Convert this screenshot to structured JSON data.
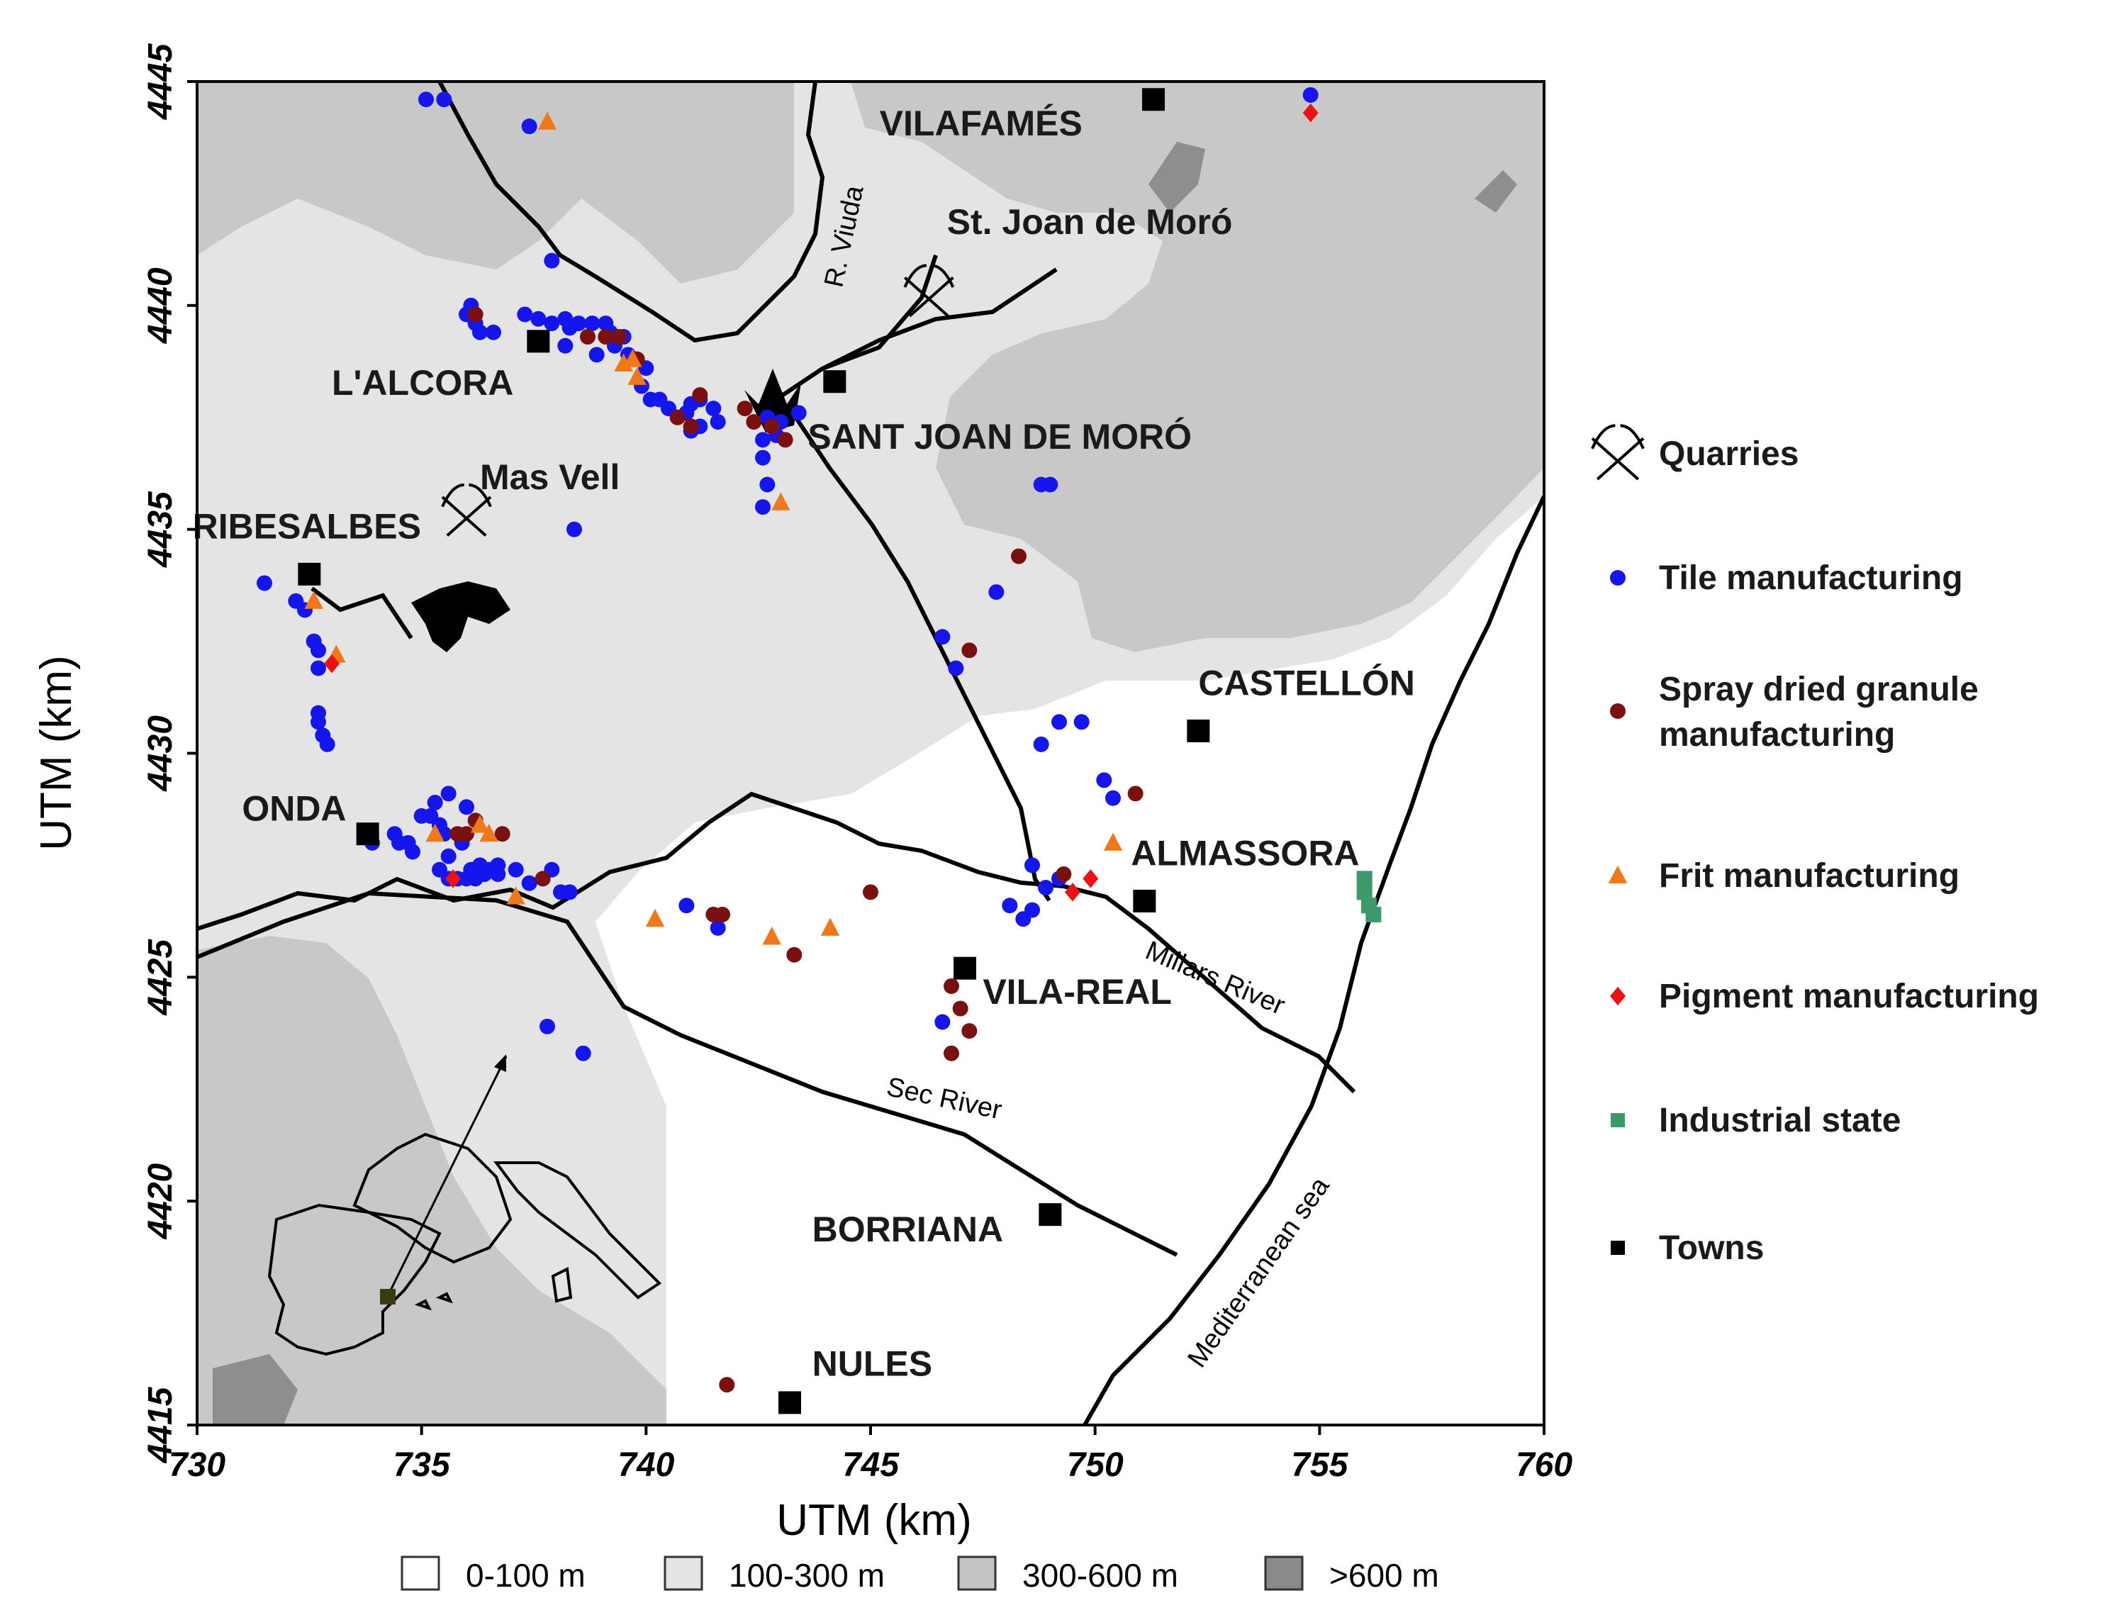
{
  "chart_data": {
    "type": "scatter",
    "xlabel": "UTM (km)",
    "ylabel": "UTM (km)",
    "xlim": [
      730,
      760
    ],
    "ylim": [
      4415,
      4445
    ],
    "x_ticks": [
      "730",
      "735",
      "740",
      "745",
      "750",
      "755",
      "760"
    ],
    "y_ticks": [
      "4415",
      "4420",
      "4425",
      "4430",
      "4435",
      "4440",
      "4445"
    ],
    "places": [
      {
        "name": "VILAFAMÉS",
        "x": 751.3,
        "y": 4444.6,
        "lx": 745.2,
        "ly": 4443.8
      },
      {
        "name": "L'ALCORA",
        "x": 737.6,
        "y": 4439.2,
        "lx": 733.0,
        "ly": 4438.0
      },
      {
        "name": "SANT JOAN DE MORÓ",
        "x": 744.2,
        "y": 4438.3,
        "lx": 743.6,
        "ly": 4436.8
      },
      {
        "name": "RIBESALBES",
        "x": 732.5,
        "y": 4434.0,
        "lx": 729.9,
        "ly": 4434.8
      },
      {
        "name": "CASTELLÓN",
        "x": 752.3,
        "y": 4430.5,
        "lx": 752.3,
        "ly": 4431.3
      },
      {
        "name": "ONDA",
        "x": 733.8,
        "y": 4428.2,
        "lx": 731.0,
        "ly": 4428.5
      },
      {
        "name": "ALMASSORA",
        "x": 751.1,
        "y": 4426.7,
        "lx": 750.8,
        "ly": 4427.5
      },
      {
        "name": "VILA-REAL",
        "x": 747.1,
        "y": 4425.2,
        "lx": 747.5,
        "ly": 4424.4
      },
      {
        "name": "BORRIANA",
        "x": 749.0,
        "y": 4419.7,
        "lx": 743.7,
        "ly": 4419.1
      },
      {
        "name": "NULES",
        "x": 743.2,
        "y": 4415.5,
        "lx": 743.7,
        "ly": 4416.1
      }
    ],
    "other_labels": [
      {
        "text": "St. Joan de Moró",
        "lx": 746.7,
        "ly": 4441.6
      },
      {
        "text": "Mas Vell",
        "lx": 736.3,
        "ly": 4435.9
      }
    ],
    "rivers": [
      {
        "name": "R. Viuda",
        "lx": 744.6,
        "ly": 4441.5,
        "angle": -78
      },
      {
        "name": "Millars River",
        "lx": 752.6,
        "ly": 4424.8,
        "angle": 23
      },
      {
        "name": "Sec River",
        "lx": 746.6,
        "ly": 4422.1,
        "angle": 12
      },
      {
        "name": "Mediterranean sea",
        "lx": 753.8,
        "ly": 4418.3,
        "angle": -55
      }
    ],
    "quarries": [
      {
        "x": 746.3,
        "y": 4440.3
      },
      {
        "x": 736.0,
        "y": 4435.4
      }
    ],
    "series": [
      {
        "name": "Tile manufacturing",
        "marker": "circle",
        "color": "#1515ee",
        "points": [
          [
            735.1,
            4444.6
          ],
          [
            735.5,
            4444.6
          ],
          [
            737.4,
            4444.0
          ],
          [
            754.8,
            4444.7
          ],
          [
            737.9,
            4441.0
          ],
          [
            736.0,
            4439.8
          ],
          [
            736.2,
            4439.6
          ],
          [
            736.3,
            4439.4
          ],
          [
            736.6,
            4439.4
          ],
          [
            736.1,
            4440.0
          ],
          [
            737.3,
            4439.8
          ],
          [
            737.6,
            4439.7
          ],
          [
            737.9,
            4439.6
          ],
          [
            738.2,
            4439.7
          ],
          [
            738.3,
            4439.5
          ],
          [
            738.5,
            4439.6
          ],
          [
            738.8,
            4439.6
          ],
          [
            739.1,
            4439.6
          ],
          [
            739.2,
            4439.4
          ],
          [
            739.3,
            4439.1
          ],
          [
            739.5,
            4439.3
          ],
          [
            738.2,
            4439.1
          ],
          [
            738.9,
            4438.9
          ],
          [
            739.6,
            4438.9
          ],
          [
            740.0,
            4438.6
          ],
          [
            739.9,
            4438.2
          ],
          [
            740.1,
            4437.9
          ],
          [
            740.3,
            4437.9
          ],
          [
            740.5,
            4437.7
          ],
          [
            740.7,
            4437.5
          ],
          [
            740.9,
            4437.6
          ],
          [
            741.0,
            4437.8
          ],
          [
            741.2,
            4437.9
          ],
          [
            741.5,
            4437.7
          ],
          [
            741.6,
            4437.4
          ],
          [
            741.2,
            4437.3
          ],
          [
            741.0,
            4437.2
          ],
          [
            742.6,
            4437.0
          ],
          [
            742.9,
            4437.1
          ],
          [
            743.0,
            4437.4
          ],
          [
            743.4,
            4437.6
          ],
          [
            742.7,
            4437.5
          ],
          [
            742.6,
            4436.6
          ],
          [
            742.7,
            4436.0
          ],
          [
            742.6,
            4435.5
          ],
          [
            742.8,
            4437.3
          ],
          [
            738.4,
            4435.0
          ],
          [
            748.8,
            4436.0
          ],
          [
            749.0,
            4436.0
          ],
          [
            731.5,
            4433.8
          ],
          [
            732.2,
            4433.4
          ],
          [
            732.4,
            4433.2
          ],
          [
            732.6,
            4432.5
          ],
          [
            732.7,
            4432.3
          ],
          [
            732.7,
            4431.9
          ],
          [
            732.7,
            4430.9
          ],
          [
            732.7,
            4430.7
          ],
          [
            732.8,
            4430.4
          ],
          [
            732.9,
            4430.2
          ],
          [
            747.8,
            4433.6
          ],
          [
            746.6,
            4432.6
          ],
          [
            746.9,
            4431.9
          ],
          [
            748.8,
            4430.2
          ],
          [
            749.2,
            4430.7
          ],
          [
            749.7,
            4430.7
          ],
          [
            750.2,
            4429.4
          ],
          [
            750.4,
            4429.0
          ],
          [
            733.9,
            4428.0
          ],
          [
            734.4,
            4428.2
          ],
          [
            734.5,
            4428.0
          ],
          [
            734.7,
            4428.0
          ],
          [
            734.8,
            4427.8
          ],
          [
            735.0,
            4428.6
          ],
          [
            735.3,
            4428.9
          ],
          [
            735.2,
            4428.6
          ],
          [
            735.4,
            4428.4
          ],
          [
            735.6,
            4429.1
          ],
          [
            735.5,
            4428.2
          ],
          [
            735.6,
            4427.7
          ],
          [
            735.9,
            4428.0
          ],
          [
            736.0,
            4428.8
          ],
          [
            735.4,
            4427.4
          ],
          [
            735.6,
            4427.2
          ],
          [
            735.8,
            4427.2
          ],
          [
            736.0,
            4427.2
          ],
          [
            736.1,
            4427.4
          ],
          [
            736.2,
            4427.2
          ],
          [
            736.4,
            4427.3
          ],
          [
            736.5,
            4427.4
          ],
          [
            736.7,
            4427.3
          ],
          [
            736.7,
            4427.5
          ],
          [
            736.3,
            4427.5
          ],
          [
            737.1,
            4427.4
          ],
          [
            737.4,
            4427.1
          ],
          [
            737.9,
            4427.4
          ],
          [
            738.1,
            4426.9
          ],
          [
            738.3,
            4426.9
          ],
          [
            740.9,
            4426.6
          ],
          [
            741.6,
            4426.1
          ],
          [
            748.1,
            4426.6
          ],
          [
            748.4,
            4426.3
          ],
          [
            748.6,
            4426.5
          ],
          [
            748.6,
            4427.5
          ],
          [
            748.9,
            4427.0
          ],
          [
            749.2,
            4427.2
          ],
          [
            746.6,
            4424.0
          ],
          [
            737.8,
            4423.9
          ],
          [
            738.6,
            4423.3
          ]
        ]
      },
      {
        "name": "Spray dried granule manufacturing",
        "marker": "circle",
        "color": "#7a1010",
        "points": [
          [
            736.2,
            4439.8
          ],
          [
            738.7,
            4439.3
          ],
          [
            739.1,
            4439.3
          ],
          [
            739.4,
            4439.3
          ],
          [
            739.8,
            4438.8
          ],
          [
            741.2,
            4438.0
          ],
          [
            740.7,
            4437.5
          ],
          [
            741.0,
            4437.3
          ],
          [
            742.2,
            4437.7
          ],
          [
            742.4,
            4437.4
          ],
          [
            742.8,
            4437.3
          ],
          [
            743.1,
            4437.0
          ],
          [
            748.3,
            4434.4
          ],
          [
            747.2,
            4432.3
          ],
          [
            736.2,
            4428.5
          ],
          [
            735.8,
            4428.2
          ],
          [
            736.0,
            4428.2
          ],
          [
            736.8,
            4428.2
          ],
          [
            737.7,
            4427.2
          ],
          [
            741.5,
            4426.4
          ],
          [
            741.7,
            4426.4
          ],
          [
            743.3,
            4425.5
          ],
          [
            745.0,
            4426.9
          ],
          [
            746.8,
            4424.8
          ],
          [
            747.0,
            4424.3
          ],
          [
            747.2,
            4423.8
          ],
          [
            746.8,
            4423.3
          ],
          [
            749.3,
            4427.3
          ],
          [
            750.9,
            4429.1
          ],
          [
            741.8,
            4415.9
          ]
        ]
      },
      {
        "name": "Frit manufacturing",
        "marker": "triangle",
        "color": "#f07818",
        "points": [
          [
            737.8,
            4444.1
          ],
          [
            739.5,
            4438.7
          ],
          [
            739.7,
            4438.8
          ],
          [
            739.8,
            4438.4
          ],
          [
            743.0,
            4435.6
          ],
          [
            732.6,
            4433.4
          ],
          [
            733.1,
            4432.2
          ],
          [
            735.3,
            4428.2
          ],
          [
            736.3,
            4428.4
          ],
          [
            736.5,
            4428.2
          ],
          [
            737.1,
            4426.8
          ],
          [
            740.2,
            4426.3
          ],
          [
            742.8,
            4425.9
          ],
          [
            744.1,
            4426.1
          ],
          [
            750.4,
            4428.0
          ]
        ]
      },
      {
        "name": "Pigment manufacturing",
        "marker": "diamond",
        "color": "#ee1111",
        "points": [
          [
            754.8,
            4444.3
          ],
          [
            733.0,
            4432.0
          ],
          [
            735.7,
            4427.2
          ],
          [
            749.5,
            4426.9
          ],
          [
            749.9,
            4427.2
          ]
        ]
      },
      {
        "name": "Industrial state",
        "marker": "square",
        "color": "#3a9a6a",
        "points": [
          [
            756.0,
            4427.2
          ],
          [
            756.0,
            4426.9
          ],
          [
            756.1,
            4426.6
          ],
          [
            756.2,
            4426.4
          ]
        ]
      },
      {
        "name": "Towns",
        "marker": "square",
        "color": "#000000",
        "points": [
          [
            751.3,
            4444.6
          ],
          [
            737.6,
            4439.2
          ],
          [
            744.2,
            4438.3
          ],
          [
            732.5,
            4434.0
          ],
          [
            752.3,
            4430.5
          ],
          [
            733.8,
            4428.2
          ],
          [
            751.1,
            4426.7
          ],
          [
            747.1,
            4425.2
          ],
          [
            749.0,
            4419.7
          ],
          [
            743.2,
            4415.5
          ]
        ]
      }
    ],
    "legend": [
      {
        "label": "Quarries",
        "symbol": "quarry"
      },
      {
        "label": "Tile manufacturing",
        "symbol": "circle",
        "color": "#1515ee"
      },
      {
        "label": "Spray dried granule",
        "label2": "manufacturing",
        "symbol": "circle",
        "color": "#7a1010"
      },
      {
        "label": "Frit manufacturing",
        "symbol": "triangle",
        "color": "#f07818"
      },
      {
        "label": "Pigment manufacturing",
        "symbol": "diamond",
        "color": "#ee1111"
      },
      {
        "label": "Industrial state",
        "symbol": "square",
        "color": "#3a9a6a"
      },
      {
        "label": "Towns",
        "symbol": "square",
        "color": "#000000"
      }
    ],
    "elevation_legend": [
      {
        "label": "0-100 m",
        "color": "#ffffff"
      },
      {
        "label": "100-300 m",
        "color": "#e4e4e4"
      },
      {
        "label": "300-600 m",
        "color": "#c4c4c4"
      },
      {
        "label": ">600 m",
        "color": "#8a8a8a"
      }
    ]
  }
}
